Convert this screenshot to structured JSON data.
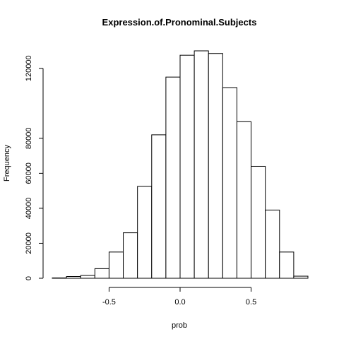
{
  "chart_data": {
    "type": "bar",
    "subtype": "histogram",
    "title": "Expression.of.Pronominal.Subjects",
    "xlabel": "prob",
    "ylabel": "Frequency",
    "bins": [
      {
        "start": -0.9,
        "end": -0.8,
        "value": 200
      },
      {
        "start": -0.8,
        "end": -0.7,
        "value": 1000
      },
      {
        "start": -0.7,
        "end": -0.6,
        "value": 1600
      },
      {
        "start": -0.6,
        "end": -0.5,
        "value": 5500
      },
      {
        "start": -0.5,
        "end": -0.4,
        "value": 15000
      },
      {
        "start": -0.4,
        "end": -0.3,
        "value": 26000
      },
      {
        "start": -0.3,
        "end": -0.2,
        "value": 52500
      },
      {
        "start": -0.2,
        "end": -0.1,
        "value": 82000
      },
      {
        "start": -0.1,
        "end": 0.0,
        "value": 115000
      },
      {
        "start": 0.0,
        "end": 0.1,
        "value": 127500
      },
      {
        "start": 0.1,
        "end": 0.2,
        "value": 130000
      },
      {
        "start": 0.2,
        "end": 0.3,
        "value": 128500
      },
      {
        "start": 0.3,
        "end": 0.4,
        "value": 109000
      },
      {
        "start": 0.4,
        "end": 0.5,
        "value": 89500
      },
      {
        "start": 0.5,
        "end": 0.6,
        "value": 64000
      },
      {
        "start": 0.6,
        "end": 0.7,
        "value": 39000
      },
      {
        "start": 0.7,
        "end": 0.8,
        "value": 15000
      },
      {
        "start": 0.8,
        "end": 0.9,
        "value": 1200
      }
    ],
    "xlim": [
      -0.9,
      0.9
    ],
    "ylim": [
      0,
      130000
    ],
    "x_ticks": [
      -0.5,
      0.0,
      0.5
    ],
    "x_tick_labels": [
      "-0.5",
      "0.0",
      "0.5"
    ],
    "y_ticks": [
      0,
      20000,
      40000,
      60000,
      80000,
      120000
    ],
    "y_tick_labels": [
      "0",
      "20000",
      "40000",
      "60000",
      "80000",
      "120000"
    ],
    "grid": false,
    "bar_fill": "#ffffff",
    "bar_stroke": "#000000"
  }
}
